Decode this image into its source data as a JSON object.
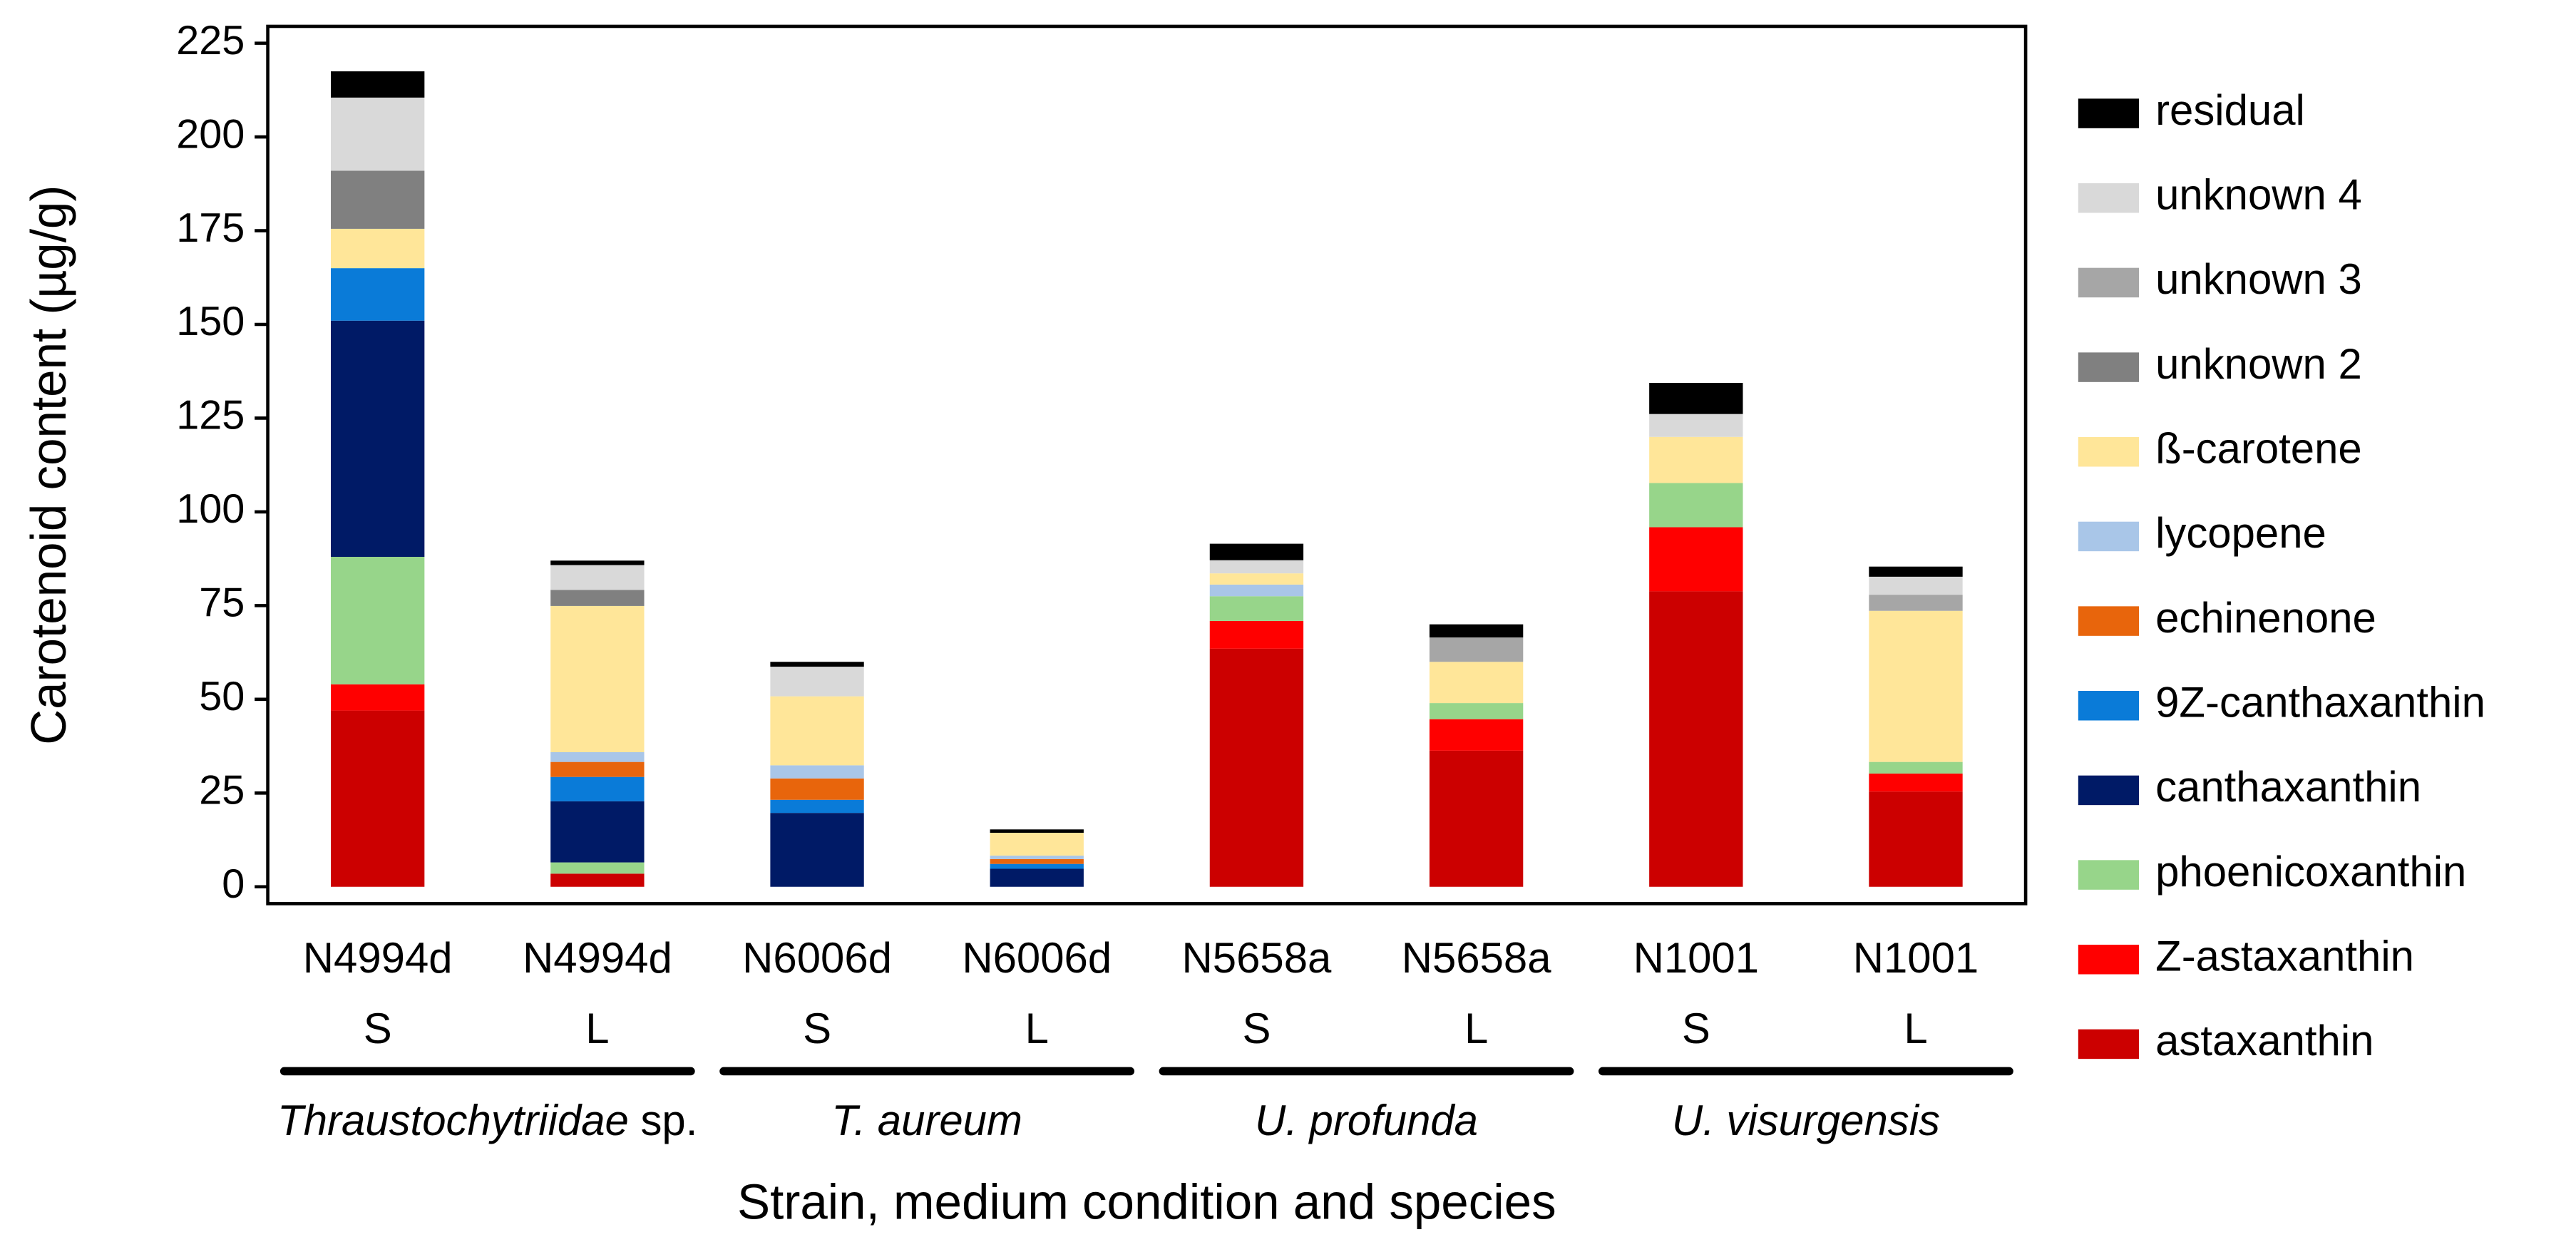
{
  "chart_data": {
    "type": "stacked-bar",
    "y_label": "Carotenoid content (µg/g)",
    "x_label": "Strain, medium condition and species",
    "categories": [
      "N4994d",
      "N4994d",
      "N6006d",
      "N6006d",
      "N5658a",
      "N5658a",
      "N1001",
      "N1001"
    ],
    "conditions": [
      "S",
      "L",
      "S",
      "L",
      "S",
      "L",
      "S",
      "L"
    ],
    "groups": [
      {
        "name": "Thraustochytriidae",
        "suffix": "sp."
      },
      {
        "name": "T. aureum"
      },
      {
        "name": "U. profunda"
      },
      {
        "name": "U. visurgensis"
      }
    ],
    "ylim": [
      -4.5,
      229.5
    ],
    "yticks": [
      0,
      25,
      50,
      75,
      100,
      125,
      150,
      175,
      200,
      225
    ],
    "series": [
      {
        "name": "astaxanthin",
        "color": "#cc0000",
        "values": [
          47,
          3.5,
          0,
          0,
          63.5,
          36.3,
          78.8,
          25.4
        ]
      },
      {
        "name": "Z-astaxanthin",
        "color": "#ff0000",
        "values": [
          7,
          0,
          0,
          0,
          7.4,
          8.4,
          17.1,
          4.8
        ]
      },
      {
        "name": "phoenicoxanthin",
        "color": "#97d58a",
        "values": [
          34,
          3,
          0,
          0,
          6.6,
          4.3,
          11.8,
          3.1
        ]
      },
      {
        "name": "canthaxanthin",
        "color": "#001a66",
        "values": [
          63,
          16.3,
          19.7,
          4.8,
          0,
          0,
          0,
          0
        ]
      },
      {
        "name": "9Z-canthaxanthin",
        "color": "#0a7bd8",
        "values": [
          14,
          6.5,
          3.5,
          1.3,
          0,
          0,
          0,
          0
        ]
      },
      {
        "name": "echinenone",
        "color": "#e8650c",
        "values": [
          0,
          4,
          5.7,
          1.3,
          0,
          0,
          0,
          0
        ]
      },
      {
        "name": "lycopene",
        "color": "#a9c6e8",
        "values": [
          0,
          2.6,
          3.5,
          0.9,
          3.1,
          0,
          0,
          0
        ]
      },
      {
        "name": "ß-carotene",
        "color": "#ffe699",
        "values": [
          10.5,
          39,
          18.4,
          6.1,
          3,
          11,
          12.3,
          40.3
        ]
      },
      {
        "name": "unknown 2",
        "color": "#808080",
        "values": [
          15.5,
          4.3,
          0,
          0,
          0,
          0,
          0,
          0
        ]
      },
      {
        "name": "unknown 3",
        "color": "#a6a6a6",
        "values": [
          0,
          0,
          0,
          0,
          0,
          6.5,
          0,
          4.3
        ]
      },
      {
        "name": "unknown 4",
        "color": "#d9d9d9",
        "values": [
          19.5,
          6.6,
          7.9,
          0,
          3.5,
          0,
          6.1,
          4.8
        ]
      },
      {
        "name": "residual",
        "color": "#000000",
        "values": [
          7,
          1.2,
          1.3,
          0.9,
          4.4,
          3.5,
          8.3,
          2.7
        ]
      }
    ]
  }
}
